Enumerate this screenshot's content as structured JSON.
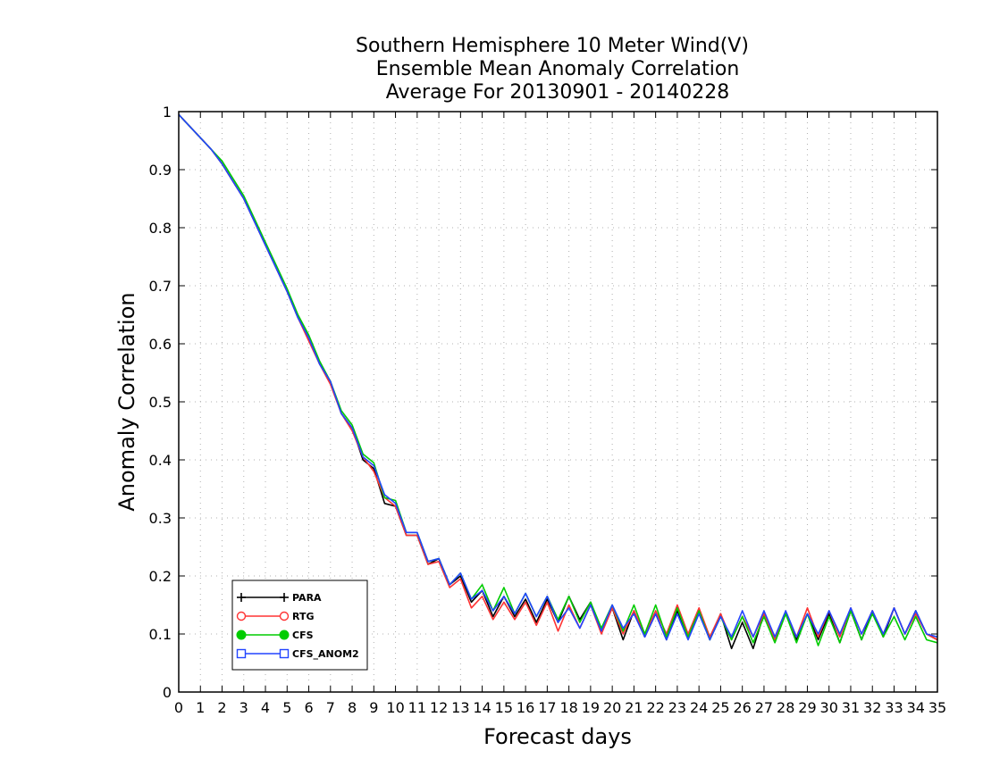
{
  "chart_data": {
    "type": "line",
    "title": [
      "Southern Hemisphere 10 Meter Wind(V)",
      "Ensemble Mean Anomaly Correlation",
      "Average For 20130901 - 20140228"
    ],
    "xlabel": "Forecast days",
    "ylabel": "Anomaly Correlation",
    "xlim": [
      0,
      35
    ],
    "ylim": [
      0,
      1
    ],
    "xticks": [
      "0",
      "1",
      "2",
      "3",
      "4",
      "5",
      "6",
      "7",
      "8",
      "9",
      "10",
      "11",
      "12",
      "13",
      "14",
      "15",
      "16",
      "17",
      "18",
      "19",
      "20",
      "21",
      "22",
      "23",
      "24",
      "25",
      "26",
      "27",
      "28",
      "29",
      "30",
      "31",
      "32",
      "33",
      "34",
      "35"
    ],
    "yticks": [
      "0",
      "0.1",
      "0.2",
      "0.3",
      "0.4",
      "0.5",
      "0.6",
      "0.7",
      "0.8",
      "0.9",
      "1"
    ],
    "grid": true,
    "legend_position": "bottom-left",
    "x": [
      0,
      0.5,
      1,
      1.5,
      2,
      2.5,
      3,
      3.5,
      4,
      4.5,
      5,
      5.5,
      6,
      6.5,
      7,
      7.5,
      8,
      8.5,
      9,
      9.5,
      10,
      10.5,
      11,
      11.5,
      12,
      12.5,
      13,
      13.5,
      14,
      14.5,
      15,
      15.5,
      16,
      16.5,
      17,
      17.5,
      18,
      18.5,
      19,
      19.5,
      20,
      20.5,
      21,
      21.5,
      22,
      22.5,
      23,
      23.5,
      24,
      24.5,
      25,
      25.5,
      26,
      26.5,
      27,
      27.5,
      28,
      28.5,
      29,
      29.5,
      30,
      30.5,
      31,
      31.5,
      32,
      32.5,
      33,
      33.5,
      34,
      34.5,
      35
    ],
    "series": [
      {
        "name": "PARA",
        "color": "#000000",
        "marker": "plus",
        "values": [
          0.995,
          0.975,
          0.955,
          0.935,
          0.91,
          0.88,
          0.85,
          0.81,
          0.77,
          0.73,
          0.69,
          0.645,
          0.61,
          0.565,
          0.535,
          0.48,
          0.455,
          0.4,
          0.385,
          0.325,
          0.32,
          0.27,
          0.27,
          0.22,
          0.23,
          0.185,
          0.2,
          0.155,
          0.175,
          0.13,
          0.165,
          0.13,
          0.16,
          0.12,
          0.16,
          0.12,
          0.165,
          0.125,
          0.155,
          0.105,
          0.145,
          0.09,
          0.14,
          0.095,
          0.135,
          0.09,
          0.14,
          0.095,
          0.14,
          0.09,
          0.135,
          0.075,
          0.12,
          0.075,
          0.135,
          0.09,
          0.135,
          0.09,
          0.135,
          0.09,
          0.135,
          0.085,
          0.14,
          0.09,
          0.14,
          0.095,
          0.145,
          0.1,
          0.14,
          0.1,
          0.09
        ]
      },
      {
        "name": "RTG",
        "color": "#ff3333",
        "marker": "open-circle",
        "values": [
          0.995,
          0.975,
          0.955,
          0.935,
          0.91,
          0.88,
          0.85,
          0.81,
          0.77,
          0.73,
          0.69,
          0.645,
          0.605,
          0.565,
          0.53,
          0.48,
          0.45,
          0.405,
          0.38,
          0.335,
          0.32,
          0.27,
          0.27,
          0.22,
          0.225,
          0.18,
          0.195,
          0.145,
          0.165,
          0.125,
          0.155,
          0.125,
          0.155,
          0.115,
          0.155,
          0.105,
          0.15,
          0.11,
          0.15,
          0.1,
          0.145,
          0.1,
          0.14,
          0.1,
          0.14,
          0.1,
          0.15,
          0.1,
          0.145,
          0.095,
          0.135,
          0.09,
          0.13,
          0.095,
          0.135,
          0.09,
          0.135,
          0.095,
          0.145,
          0.095,
          0.14,
          0.095,
          0.145,
          0.1,
          0.14,
          0.1,
          0.145,
          0.1,
          0.135,
          0.1,
          0.09
        ]
      },
      {
        "name": "CFS",
        "color": "#00cc00",
        "marker": "filled-circle",
        "values": [
          0.995,
          0.975,
          0.955,
          0.935,
          0.915,
          0.885,
          0.855,
          0.815,
          0.775,
          0.735,
          0.695,
          0.65,
          0.615,
          0.57,
          0.535,
          0.485,
          0.46,
          0.41,
          0.395,
          0.335,
          0.33,
          0.275,
          0.275,
          0.225,
          0.23,
          0.185,
          0.205,
          0.16,
          0.185,
          0.14,
          0.18,
          0.135,
          0.17,
          0.13,
          0.165,
          0.125,
          0.165,
          0.12,
          0.155,
          0.11,
          0.15,
          0.105,
          0.15,
          0.1,
          0.15,
          0.095,
          0.145,
          0.095,
          0.14,
          0.09,
          0.13,
          0.09,
          0.13,
          0.085,
          0.13,
          0.085,
          0.135,
          0.085,
          0.135,
          0.08,
          0.13,
          0.085,
          0.14,
          0.09,
          0.135,
          0.095,
          0.13,
          0.09,
          0.13,
          0.09,
          0.085
        ]
      },
      {
        "name": "CFS_ANOM2",
        "color": "#2244ff",
        "marker": "open-square",
        "values": [
          0.995,
          0.975,
          0.955,
          0.935,
          0.91,
          0.88,
          0.85,
          0.81,
          0.77,
          0.73,
          0.69,
          0.645,
          0.61,
          0.565,
          0.535,
          0.48,
          0.455,
          0.405,
          0.39,
          0.34,
          0.325,
          0.275,
          0.275,
          0.225,
          0.23,
          0.185,
          0.205,
          0.16,
          0.175,
          0.14,
          0.165,
          0.135,
          0.17,
          0.13,
          0.165,
          0.12,
          0.145,
          0.11,
          0.15,
          0.105,
          0.15,
          0.11,
          0.135,
          0.095,
          0.135,
          0.09,
          0.135,
          0.09,
          0.135,
          0.09,
          0.13,
          0.095,
          0.14,
          0.095,
          0.14,
          0.095,
          0.14,
          0.095,
          0.135,
          0.1,
          0.14,
          0.1,
          0.145,
          0.1,
          0.14,
          0.1,
          0.145,
          0.1,
          0.14,
          0.1,
          0.095
        ]
      }
    ]
  }
}
